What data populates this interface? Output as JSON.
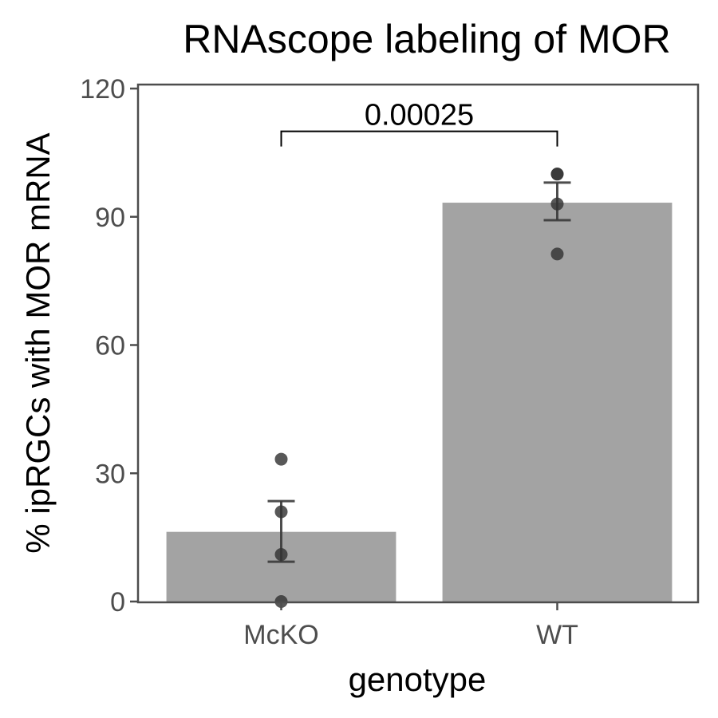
{
  "chart_data": {
    "type": "bar",
    "title": "RNAscope labeling of MOR",
    "xlabel": "genotype",
    "ylabel": "% ipRGCs with MOR mRNA",
    "ylim": [
      0,
      120
    ],
    "yticks": [
      0,
      30,
      60,
      90,
      120
    ],
    "categories": [
      "McKO",
      "WT"
    ],
    "values": [
      16.3,
      93.3
    ],
    "error_bars": [
      {
        "low": 9.3,
        "high": 23.5
      },
      {
        "low": 89.2,
        "high": 98.0
      }
    ],
    "points": [
      [
        33.3,
        21.0,
        11.0,
        0.0
      ],
      [
        100.0,
        100.0,
        93.0,
        81.3
      ]
    ],
    "annotation": {
      "text": "0.00025",
      "from": "McKO",
      "to": "WT",
      "y": 110
    },
    "grid": false,
    "colors": {
      "bar": "#a3a3a3",
      "point": "#333333",
      "errorbar": "#3a3a3a",
      "axis": "#4d4d4d"
    }
  }
}
